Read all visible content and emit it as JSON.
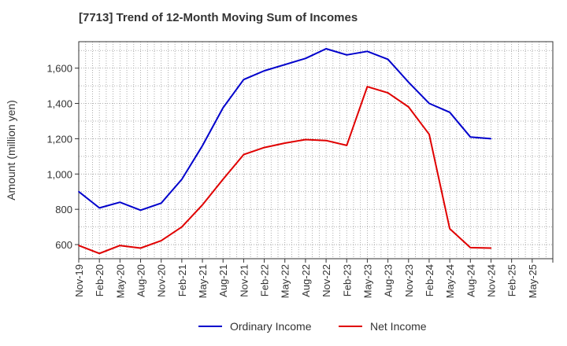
{
  "chart_data": {
    "type": "line",
    "title": "[7713]  Trend of 12-Month Moving Sum of Incomes",
    "xlabel": "",
    "ylabel": "Amount (million yen)",
    "ylim": [
      520,
      1750
    ],
    "yticks": [
      600,
      800,
      1000,
      1200,
      1400,
      1600
    ],
    "ytick_labels": [
      "600",
      "800",
      "1,000",
      "1,200",
      "1,400",
      "1,600"
    ],
    "categories": [
      "Nov-19",
      "Feb-20",
      "May-20",
      "Aug-20",
      "Nov-20",
      "Feb-21",
      "May-21",
      "Aug-21",
      "Nov-21",
      "Feb-22",
      "May-22",
      "Aug-22",
      "Nov-22",
      "Feb-23",
      "May-23",
      "Aug-23",
      "Nov-23",
      "Feb-24",
      "May-24",
      "Aug-24",
      "Nov-24",
      "Feb-25",
      "May-25"
    ],
    "grid": true,
    "legend_position": "bottom",
    "series": [
      {
        "name": "Ordinary Income",
        "color": "#0000cc",
        "values": [
          900,
          808,
          840,
          795,
          835,
          970,
          1160,
          1375,
          1535,
          1585,
          1620,
          1655,
          1710,
          1675,
          1695,
          1650,
          1520,
          1400,
          1350,
          1210,
          1200,
          null,
          null
        ]
      },
      {
        "name": "Net Income",
        "color": "#e00000",
        "values": [
          595,
          550,
          595,
          580,
          622,
          700,
          825,
          970,
          1110,
          1150,
          1175,
          1195,
          1190,
          1162,
          1495,
          1460,
          1380,
          1225,
          690,
          583,
          580,
          null,
          null
        ]
      }
    ]
  }
}
